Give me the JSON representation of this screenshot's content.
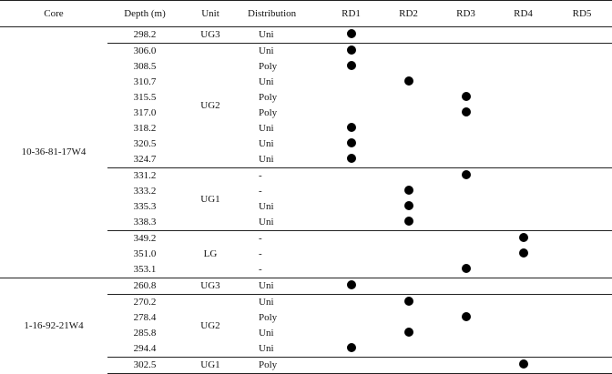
{
  "headers": [
    "Core",
    "Depth  (m)",
    "Unit",
    "Distribution",
    "RD1",
    "RD2",
    "RD3",
    "RD4",
    "RD5"
  ],
  "cores": [
    {
      "name": "10-36-81-17W4",
      "units": [
        {
          "unit": "UG3",
          "rows": [
            {
              "depth": "298.2",
              "dist": "Uni",
              "rd": 1
            }
          ]
        },
        {
          "unit": "UG2",
          "rows": [
            {
              "depth": "306.0",
              "dist": "Uni",
              "rd": 1
            },
            {
              "depth": "308.5",
              "dist": "Poly",
              "rd": 1
            },
            {
              "depth": "310.7",
              "dist": "Uni",
              "rd": 2
            },
            {
              "depth": "315.5",
              "dist": "Poly",
              "rd": 3
            },
            {
              "depth": "317.0",
              "dist": "Poly",
              "rd": 3
            },
            {
              "depth": "318.2",
              "dist": "Uni",
              "rd": 1
            },
            {
              "depth": "320.5",
              "dist": "Uni",
              "rd": 1
            },
            {
              "depth": "324.7",
              "dist": "Uni",
              "rd": 1
            }
          ]
        },
        {
          "unit": "UG1",
          "rows": [
            {
              "depth": "331.2",
              "dist": "-",
              "rd": 3
            },
            {
              "depth": "333.2",
              "dist": "-",
              "rd": 2
            },
            {
              "depth": "335.3",
              "dist": "Uni",
              "rd": 2
            },
            {
              "depth": "338.3",
              "dist": "Uni",
              "rd": 2
            }
          ]
        },
        {
          "unit": "LG",
          "rows": [
            {
              "depth": "349.2",
              "dist": "-",
              "rd": 4
            },
            {
              "depth": "351.0",
              "dist": "-",
              "rd": 4
            },
            {
              "depth": "353.1",
              "dist": "-",
              "rd": 3
            }
          ]
        }
      ]
    },
    {
      "name": "1-16-92-21W4",
      "units": [
        {
          "unit": "UG3",
          "rows": [
            {
              "depth": "260.8",
              "dist": "Uni",
              "rd": 1
            }
          ]
        },
        {
          "unit": "UG2",
          "rows": [
            {
              "depth": "270.2",
              "dist": "Uni",
              "rd": 2
            },
            {
              "depth": "278.4",
              "dist": "Poly",
              "rd": 3
            },
            {
              "depth": "285.8",
              "dist": "Uni",
              "rd": 2
            },
            {
              "depth": "294.4",
              "dist": "Uni",
              "rd": 1
            }
          ]
        },
        {
          "unit": "UG1",
          "rows": [
            {
              "depth": "302.5",
              "dist": "Poly",
              "rd": 4
            }
          ]
        }
      ]
    }
  ]
}
